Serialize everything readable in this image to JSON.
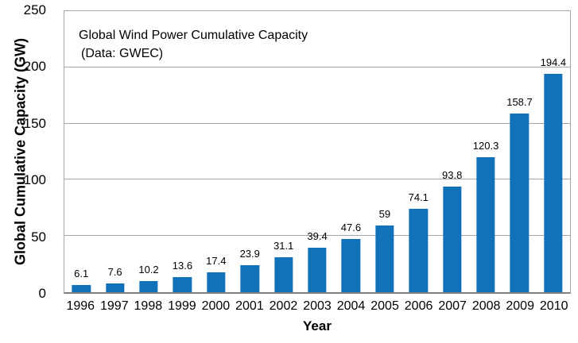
{
  "chart_data": {
    "type": "bar",
    "title": "Global Wind Power Cumulative Capacity",
    "subtitle": "(Data: GWEC)",
    "xlabel": "Year",
    "ylabel": "Global Cumulative Capacity (GW)",
    "categories": [
      "1996",
      "1997",
      "1998",
      "1999",
      "2000",
      "2001",
      "2002",
      "2003",
      "2004",
      "2005",
      "2006",
      "2007",
      "2008",
      "2009",
      "2010"
    ],
    "values": [
      6.1,
      7.6,
      10.2,
      13.6,
      17.4,
      23.9,
      31.1,
      39.4,
      47.6,
      59,
      74.1,
      93.8,
      120.3,
      158.7,
      194.4
    ],
    "value_labels": [
      "6.1",
      "7.6",
      "10.2",
      "13.6",
      "17.4",
      "23.9",
      "31.1",
      "39.4",
      "47.6",
      "59",
      "74.1",
      "93.8",
      "120.3",
      "158.7",
      "194.4"
    ],
    "ylim": [
      0,
      250
    ],
    "yticks": [
      0,
      50,
      100,
      150,
      200,
      250
    ],
    "grid": true,
    "legend_position": "none",
    "bar_color": "#1172ba",
    "gridline_color": "#a6a6a6",
    "axis_line_color": "#7f7f7f",
    "text_color": "#000000"
  }
}
